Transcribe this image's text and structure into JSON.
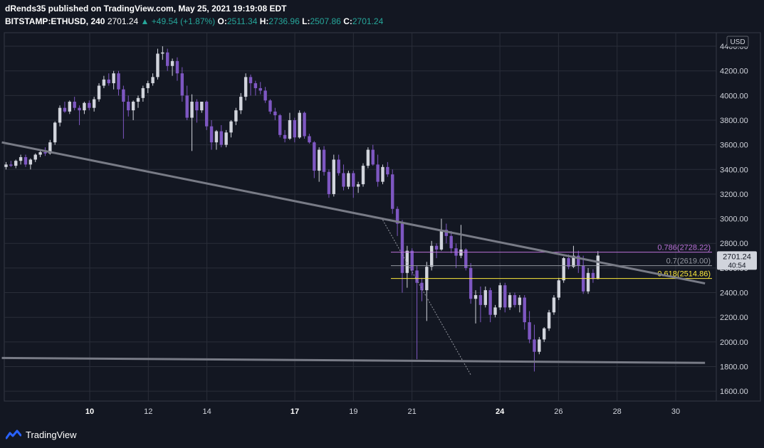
{
  "header": {
    "publisher": "dRends35 published on TradingView.com, May 25, 2021 19:19:08 EDT",
    "symbol": "BITSTAMP:ETHUSD, 240",
    "price": "2701.24",
    "arrow": "▲",
    "change": "+49.54 (+1.87%)",
    "o_label": "O:",
    "o_val": "2511.34",
    "h_label": "H:",
    "h_val": "2736.96",
    "l_label": "L:",
    "l_val": "2507.86",
    "c_label": "C:",
    "c_val": "2701.24"
  },
  "footer": {
    "brand": "TradingView"
  },
  "colors": {
    "bull": "#d1d4dc",
    "bear": "#7e57c2",
    "fib786": "#b971d6",
    "fib700": "#9598a1",
    "fib618": "#ffeb3b",
    "trend": "#787b86",
    "bg": "#131722",
    "grid": "#2a2e39"
  },
  "chart_data": {
    "type": "candlestick",
    "currency": "USD",
    "ylim": [
      1520,
      4510
    ],
    "y_ticks": [
      "4400.00",
      "4200.00",
      "4000.00",
      "3800.00",
      "3600.00",
      "3400.00",
      "3200.00",
      "3000.00",
      "2800.00",
      "2600.00",
      "2400.00",
      "2200.00",
      "2000.00",
      "1800.00",
      "1600.00"
    ],
    "x_ticks": [
      {
        "label": "10",
        "bold": true
      },
      {
        "label": "12",
        "bold": false
      },
      {
        "label": "14",
        "bold": false
      },
      {
        "label": "17",
        "bold": true
      },
      {
        "label": "19",
        "bold": false
      },
      {
        "label": "21",
        "bold": false
      },
      {
        "label": "24",
        "bold": true
      },
      {
        "label": "26",
        "bold": false
      },
      {
        "label": "28",
        "bold": false
      },
      {
        "label": "30",
        "bold": false
      }
    ],
    "current_price": {
      "value": "2701.24",
      "countdown": "40:54"
    },
    "fib_levels": [
      {
        "ratio": "0.786",
        "price": "2728.22",
        "label": "0.786(2728.22)",
        "color": "#b971d6"
      },
      {
        "ratio": "0.7",
        "price": "2619.00",
        "label": "0.7(2619.00)",
        "color": "#9598a1"
      },
      {
        "ratio": "0.618",
        "price": "2514.86",
        "label": "0.618(2514.86)",
        "color": "#ffeb3b"
      }
    ],
    "trendlines": [
      {
        "name": "descending resistance",
        "from": [
          "May 7",
          3620
        ],
        "to": [
          "May 31",
          2475
        ]
      },
      {
        "name": "support",
        "from": [
          "May 7",
          1870
        ],
        "to": [
          "May 31",
          1830
        ]
      }
    ],
    "fib_anchor_line": {
      "from": [
        "May 20",
        2990
      ],
      "to": [
        "May 23",
        1735
      ]
    },
    "candles": [
      [
        3420,
        3460,
        3400,
        3440
      ],
      [
        3440,
        3470,
        3420,
        3430
      ],
      [
        3430,
        3480,
        3410,
        3470
      ],
      [
        3470,
        3520,
        3440,
        3500
      ],
      [
        3500,
        3520,
        3420,
        3440
      ],
      [
        3440,
        3490,
        3400,
        3480
      ],
      [
        3480,
        3530,
        3460,
        3520
      ],
      [
        3520,
        3560,
        3500,
        3540
      ],
      [
        3540,
        3580,
        3510,
        3530
      ],
      [
        3530,
        3640,
        3520,
        3620
      ],
      [
        3620,
        3790,
        3600,
        3780
      ],
      [
        3780,
        3920,
        3750,
        3900
      ],
      [
        3900,
        3950,
        3860,
        3870
      ],
      [
        3870,
        3960,
        3850,
        3950
      ],
      [
        3950,
        3990,
        3880,
        3900
      ],
      [
        3900,
        3920,
        3760,
        3880
      ],
      [
        3880,
        3950,
        3850,
        3940
      ],
      [
        3940,
        3960,
        3880,
        3900
      ],
      [
        3900,
        3990,
        3870,
        3970
      ],
      [
        3970,
        4100,
        3950,
        4080
      ],
      [
        4080,
        4160,
        4060,
        4130
      ],
      [
        4130,
        4180,
        4080,
        4100
      ],
      [
        4100,
        4200,
        4050,
        4180
      ],
      [
        4180,
        4200,
        4000,
        4050
      ],
      [
        4050,
        4080,
        3650,
        3950
      ],
      [
        3950,
        4000,
        3830,
        3880
      ],
      [
        3880,
        3960,
        3800,
        3950
      ],
      [
        3950,
        4000,
        3900,
        3980
      ],
      [
        3980,
        4080,
        3950,
        4060
      ],
      [
        4060,
        4120,
        4020,
        4100
      ],
      [
        4100,
        4180,
        4080,
        4150
      ],
      [
        4150,
        4380,
        4130,
        4340
      ],
      [
        4340,
        4400,
        4290,
        4350
      ],
      [
        4350,
        4380,
        4200,
        4240
      ],
      [
        4240,
        4300,
        4160,
        4280
      ],
      [
        4280,
        4310,
        4120,
        4180
      ],
      [
        4180,
        4230,
        3950,
        4000
      ],
      [
        4000,
        4080,
        3800,
        3820
      ],
      [
        3820,
        4010,
        3550,
        3950
      ],
      [
        3950,
        3970,
        3780,
        3880
      ],
      [
        3880,
        3950,
        3860,
        3950
      ],
      [
        3950,
        3960,
        3720,
        3750
      ],
      [
        3750,
        3800,
        3560,
        3620
      ],
      [
        3620,
        3720,
        3560,
        3710
      ],
      [
        3710,
        3760,
        3580,
        3600
      ],
      [
        3600,
        3720,
        3580,
        3700
      ],
      [
        3700,
        3800,
        3660,
        3790
      ],
      [
        3790,
        3900,
        3760,
        3880
      ],
      [
        3880,
        4020,
        3850,
        3990
      ],
      [
        3990,
        4180,
        3960,
        4150
      ],
      [
        4150,
        4170,
        4000,
        4100
      ],
      [
        4100,
        4120,
        4000,
        4060
      ],
      [
        4060,
        4110,
        4010,
        4040
      ],
      [
        4040,
        4070,
        3940,
        3960
      ],
      [
        3960,
        3970,
        3850,
        3870
      ],
      [
        3870,
        3900,
        3800,
        3840
      ],
      [
        3840,
        3850,
        3660,
        3680
      ],
      [
        3680,
        3720,
        3620,
        3650
      ],
      [
        3650,
        3860,
        3640,
        3800
      ],
      [
        3800,
        3820,
        3620,
        3660
      ],
      [
        3660,
        3880,
        3650,
        3860
      ],
      [
        3860,
        3870,
        3650,
        3670
      ],
      [
        3670,
        3690,
        3610,
        3620
      ],
      [
        3620,
        3630,
        3330,
        3390
      ],
      [
        3390,
        3580,
        3300,
        3560
      ],
      [
        3560,
        3590,
        3350,
        3380
      ],
      [
        3380,
        3400,
        3170,
        3200
      ],
      [
        3200,
        3520,
        3180,
        3480
      ],
      [
        3480,
        3520,
        3350,
        3370
      ],
      [
        3370,
        3440,
        3230,
        3260
      ],
      [
        3260,
        3390,
        3240,
        3370
      ],
      [
        3370,
        3390,
        3170,
        3260
      ],
      [
        3260,
        3300,
        3210,
        3280
      ],
      [
        3280,
        3450,
        3260,
        3430
      ],
      [
        3430,
        3580,
        3410,
        3560
      ],
      [
        3560,
        3600,
        3430,
        3440
      ],
      [
        3440,
        3520,
        3260,
        3300
      ],
      [
        3300,
        3440,
        3280,
        3420
      ],
      [
        3420,
        3460,
        3340,
        3360
      ],
      [
        3360,
        3400,
        3040,
        3080
      ],
      [
        3080,
        3100,
        2860,
        2960
      ],
      [
        2960,
        2990,
        2400,
        2560
      ],
      [
        2560,
        2780,
        2440,
        2740
      ],
      [
        2740,
        2760,
        2540,
        2580
      ],
      [
        2580,
        2620,
        1860,
        2480
      ],
      [
        2480,
        2520,
        2330,
        2420
      ],
      [
        2420,
        2650,
        2170,
        2610
      ],
      [
        2610,
        2820,
        2580,
        2780
      ],
      [
        2780,
        2800,
        2680,
        2750
      ],
      [
        2750,
        3000,
        2740,
        2910
      ],
      [
        2910,
        2960,
        2800,
        2860
      ],
      [
        2860,
        2900,
        2720,
        2760
      ],
      [
        2760,
        2800,
        2600,
        2700
      ],
      [
        2700,
        2950,
        2680,
        2750
      ],
      [
        2750,
        2760,
        2580,
        2600
      ],
      [
        2600,
        2640,
        2310,
        2350
      ],
      [
        2350,
        2420,
        2150,
        2380
      ],
      [
        2380,
        2450,
        2160,
        2300
      ],
      [
        2300,
        2450,
        2280,
        2420
      ],
      [
        2420,
        2440,
        2160,
        2220
      ],
      [
        2220,
        2300,
        2200,
        2280
      ],
      [
        2280,
        2480,
        2260,
        2460
      ],
      [
        2460,
        2480,
        2240,
        2280
      ],
      [
        2280,
        2400,
        2260,
        2380
      ],
      [
        2380,
        2400,
        2280,
        2300
      ],
      [
        2300,
        2380,
        2240,
        2360
      ],
      [
        2360,
        2380,
        2100,
        2160
      ],
      [
        2160,
        2250,
        1990,
        2020
      ],
      [
        2020,
        2140,
        1760,
        1920
      ],
      [
        1920,
        2040,
        1900,
        2020
      ],
      [
        2020,
        2120,
        2000,
        2110
      ],
      [
        2110,
        2260,
        2090,
        2240
      ],
      [
        2240,
        2380,
        2220,
        2360
      ],
      [
        2360,
        2520,
        2340,
        2500
      ],
      [
        2500,
        2690,
        2480,
        2680
      ],
      [
        2680,
        2710,
        2590,
        2610
      ],
      [
        2610,
        2780,
        2600,
        2700
      ],
      [
        2700,
        2740,
        2560,
        2620
      ],
      [
        2620,
        2700,
        2390,
        2410
      ],
      [
        2410,
        2600,
        2390,
        2560
      ],
      [
        2560,
        2590,
        2480,
        2511
      ],
      [
        2511,
        2737,
        2508,
        2701
      ]
    ]
  }
}
